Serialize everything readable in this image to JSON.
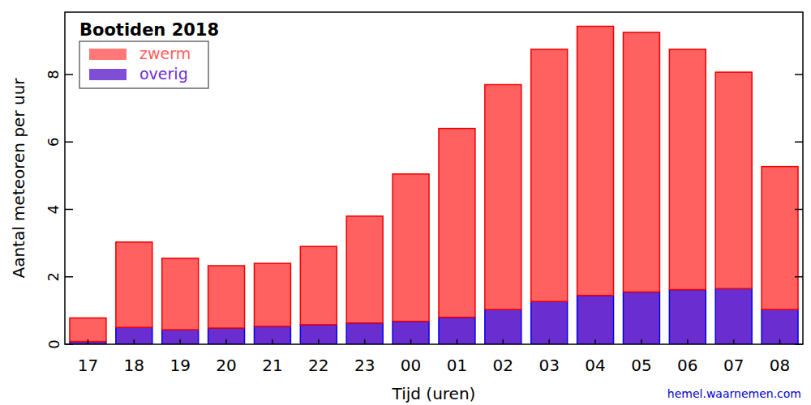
{
  "chart_data": {
    "type": "bar",
    "title": "Bootiden 2018",
    "x_label": "Tijd (uren)",
    "y_label": "Aantal meteoren per uur",
    "source": "hemel.waarnemen.com",
    "categories": [
      "17",
      "18",
      "19",
      "20",
      "21",
      "22",
      "23",
      "00",
      "01",
      "02",
      "03",
      "04",
      "05",
      "06",
      "07",
      "08"
    ],
    "series": [
      {
        "name": "zwerm",
        "color": "#ff6060",
        "values": [
          0.7,
          2.53,
          2.12,
          1.85,
          1.87,
          2.32,
          3.17,
          4.37,
          5.6,
          6.67,
          7.48,
          7.98,
          7.7,
          7.13,
          6.42,
          4.24
        ]
      },
      {
        "name": "overig",
        "color": "#6a2ed0",
        "values": [
          0.08,
          0.5,
          0.43,
          0.48,
          0.53,
          0.58,
          0.63,
          0.68,
          0.8,
          1.03,
          1.27,
          1.45,
          1.55,
          1.62,
          1.65,
          1.03
        ]
      }
    ],
    "stacked": true,
    "legend": "upper left",
    "ylim": [
      0,
      9.85
    ],
    "yticks": [
      0,
      2,
      4,
      6,
      8
    ],
    "grid": false
  }
}
